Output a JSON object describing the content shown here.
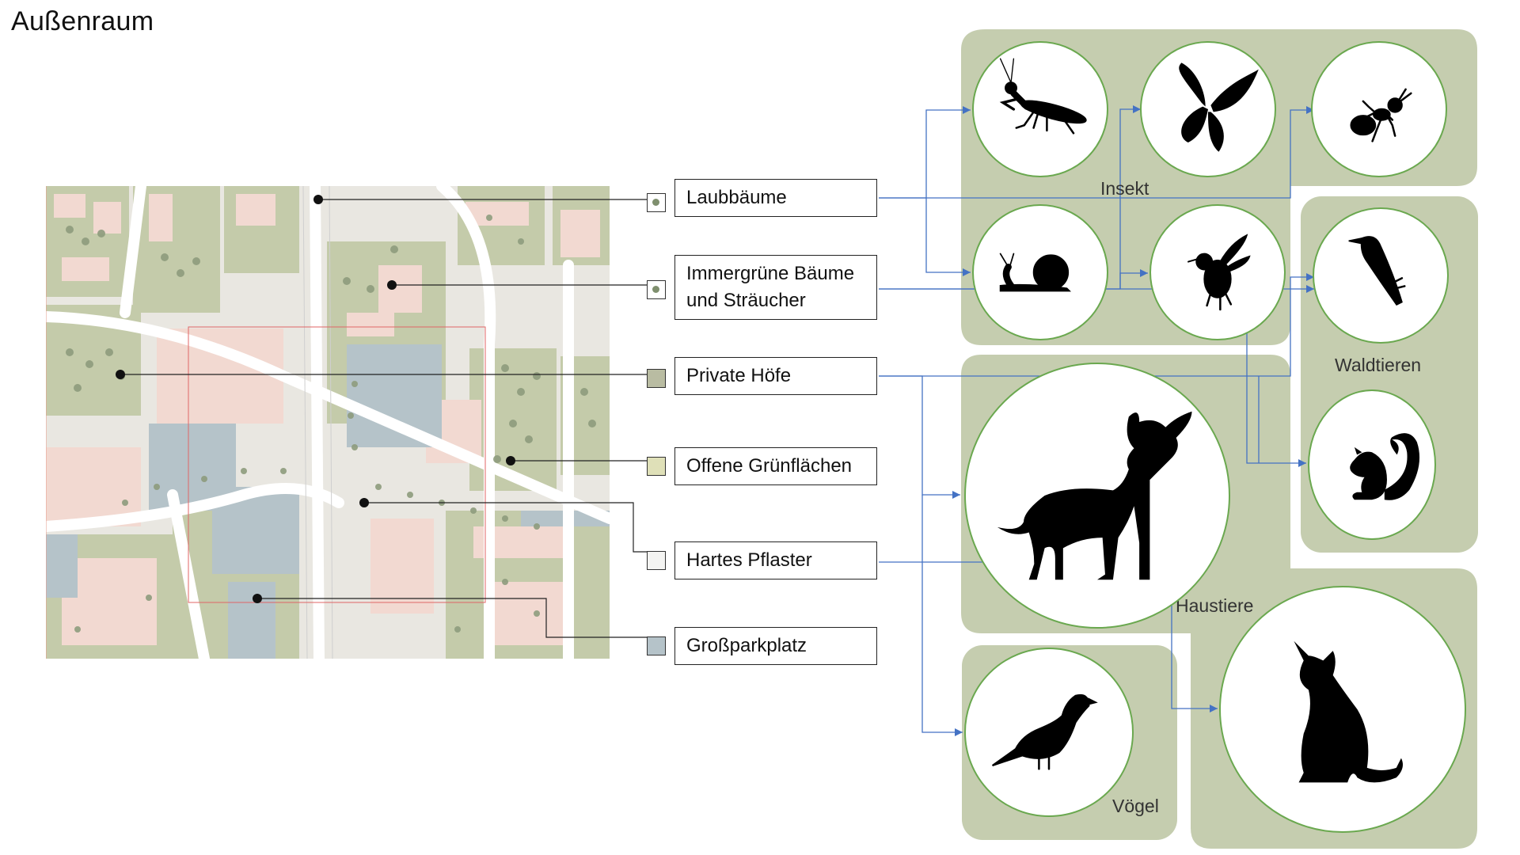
{
  "title": "Außenraum",
  "legend": [
    {
      "label": "Laubbäume",
      "swatch": "#ffffff",
      "dot": true
    },
    {
      "label": "Immergrüne Bäume und Sträucher",
      "swatch": "#ffffff",
      "dot": true
    },
    {
      "label": "Private Höfe",
      "swatch": "#b9bca2",
      "dot": false
    },
    {
      "label": "Offene Grünflächen",
      "swatch": "#dfe0b8",
      "dot": false
    },
    {
      "label": "Hartes Pflaster",
      "swatch": "#f4f4f2",
      "dot": false
    },
    {
      "label": "Großparkplatz",
      "swatch": "#b5c3c9",
      "dot": false
    }
  ],
  "groups": {
    "insekt": "Insekt",
    "waldtieren": "Waldtieren",
    "haustiere": "Haustiere",
    "voegel": "Vögel"
  },
  "animals": [
    "mantis-icon",
    "butterfly-icon",
    "ant-icon",
    "snail-icon",
    "bee-icon",
    "woodpecker-icon",
    "squirrel-icon",
    "dog-icon",
    "cat-icon",
    "pigeon-icon"
  ],
  "colors": {
    "group_fill": "#c5cdaf",
    "circle_stroke": "#6aa84f",
    "arrow": "#4472c4",
    "map_pink": "#f2d9d1",
    "map_green": "#c4cbaa",
    "map_blue": "#b5c3c9",
    "tree": "#8e9c7d"
  }
}
